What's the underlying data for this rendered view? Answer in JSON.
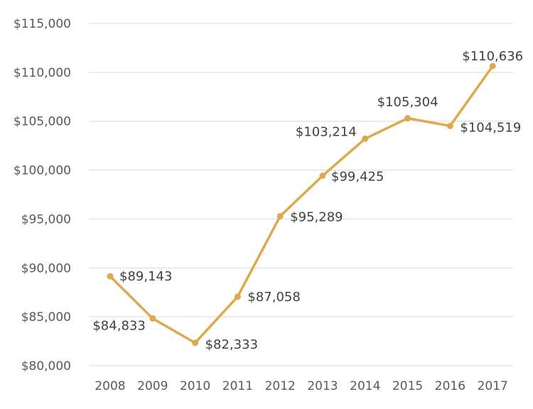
{
  "chart_data": {
    "type": "line",
    "title": "",
    "xlabel": "",
    "ylabel": "",
    "categories": [
      "2008",
      "2009",
      "2010",
      "2011",
      "2012",
      "2013",
      "2014",
      "2015",
      "2016",
      "2017"
    ],
    "values": [
      89143,
      84833,
      82333,
      87058,
      95289,
      99425,
      103214,
      105304,
      104519,
      110636
    ],
    "data_labels": [
      "$89,143",
      "$84,833",
      "$82,333",
      "$87,058",
      "$95,289",
      "$99,425",
      "$103,214",
      "$105,304",
      "$104,519",
      "$110,636"
    ],
    "ylim": [
      80000,
      115000
    ],
    "yticks": [
      80000,
      85000,
      90000,
      95000,
      100000,
      105000,
      110000,
      115000
    ],
    "ytick_labels": [
      "$80,000",
      "$85,000",
      "$90,000",
      "$95,000",
      "$100,000",
      "$105,000",
      "$110,000",
      "$115,000"
    ],
    "grid": true,
    "legend": "none",
    "line_color": "#DDA94F",
    "grid_color": "#D9D9D9"
  }
}
